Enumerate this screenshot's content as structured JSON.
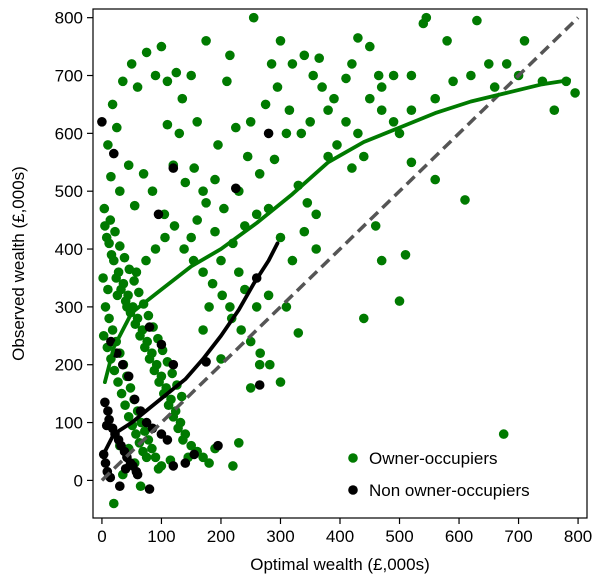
{
  "chart_data": {
    "type": "scatter",
    "xlabel": "Optimal wealth (£,000s)",
    "ylabel": "Observed wealth (£,000s)",
    "xlim": [
      -15,
      815
    ],
    "ylim": [
      -65,
      815
    ],
    "xticks": [
      "0",
      "100",
      "200",
      "300",
      "400",
      "500",
      "600",
      "700",
      "800"
    ],
    "yticks": [
      "0",
      "100",
      "200",
      "300",
      "400",
      "500",
      "600",
      "700",
      "800"
    ],
    "grid": false,
    "legend_position": "bottom-right",
    "reference_line": {
      "style": "dashed",
      "color": "#555555",
      "from": [
        0,
        0
      ],
      "to": [
        800,
        800
      ]
    },
    "series": [
      {
        "name": "Owner-occupiers",
        "color": "#007a00",
        "points": [
          [
            10,
            580
          ],
          [
            18,
            650
          ],
          [
            25,
            610
          ],
          [
            35,
            690
          ],
          [
            50,
            720
          ],
          [
            60,
            680
          ],
          [
            75,
            740
          ],
          [
            90,
            700
          ],
          [
            100,
            750
          ],
          [
            110,
            690
          ],
          [
            125,
            705
          ],
          [
            135,
            660
          ],
          [
            150,
            700
          ],
          [
            175,
            760
          ],
          [
            210,
            690
          ],
          [
            215,
            735
          ],
          [
            255,
            800
          ],
          [
            285,
            720
          ],
          [
            300,
            760
          ],
          [
            320,
            720
          ],
          [
            340,
            735
          ],
          [
            355,
            700
          ],
          [
            365,
            730
          ],
          [
            380,
            640
          ],
          [
            410,
            695
          ],
          [
            420,
            720
          ],
          [
            430,
            765
          ],
          [
            450,
            750
          ],
          [
            465,
            700
          ],
          [
            470,
            640
          ],
          [
            490,
            620
          ],
          [
            500,
            600
          ],
          [
            520,
            640
          ],
          [
            540,
            790
          ],
          [
            545,
            800
          ],
          [
            580,
            760
          ],
          [
            630,
            795
          ],
          [
            650,
            720
          ],
          [
            680,
            720
          ],
          [
            710,
            760
          ],
          [
            760,
            640
          ],
          [
            795,
            670
          ],
          [
            15,
            525
          ],
          [
            30,
            500
          ],
          [
            45,
            545
          ],
          [
            55,
            475
          ],
          [
            70,
            530
          ],
          [
            85,
            500
          ],
          [
            105,
            460
          ],
          [
            120,
            545
          ],
          [
            140,
            515
          ],
          [
            155,
            540
          ],
          [
            170,
            500
          ],
          [
            190,
            520
          ],
          [
            205,
            470
          ],
          [
            230,
            500
          ],
          [
            245,
            560
          ],
          [
            265,
            530
          ],
          [
            290,
            555
          ],
          [
            310,
            600
          ],
          [
            330,
            510
          ],
          [
            345,
            480
          ],
          [
            360,
            460
          ],
          [
            380,
            560
          ],
          [
            395,
            580
          ],
          [
            420,
            540
          ],
          [
            440,
            560
          ],
          [
            460,
            440
          ],
          [
            470,
            380
          ],
          [
            510,
            390
          ],
          [
            520,
            550
          ],
          [
            560,
            520
          ],
          [
            610,
            485
          ],
          [
            675,
            80
          ],
          [
            500,
            310
          ],
          [
            440,
            280
          ],
          [
            330,
            255
          ],
          [
            300,
            170
          ],
          [
            250,
            160
          ],
          [
            265,
            200
          ],
          [
            200,
            210
          ],
          [
            215,
            300
          ],
          [
            5,
            440
          ],
          [
            12,
            410
          ],
          [
            20,
            380
          ],
          [
            28,
            360
          ],
          [
            36,
            340
          ],
          [
            44,
            320
          ],
          [
            52,
            300
          ],
          [
            60,
            280
          ],
          [
            68,
            260
          ],
          [
            76,
            240
          ],
          [
            84,
            220
          ],
          [
            92,
            200
          ],
          [
            100,
            180
          ],
          [
            108,
            160
          ],
          [
            116,
            140
          ],
          [
            124,
            120
          ],
          [
            132,
            100
          ],
          [
            140,
            80
          ],
          [
            150,
            60
          ],
          [
            160,
            50
          ],
          [
            170,
            40
          ],
          [
            180,
            30
          ],
          [
            8,
            420
          ],
          [
            16,
            390
          ],
          [
            24,
            350
          ],
          [
            32,
            330
          ],
          [
            40,
            310
          ],
          [
            48,
            290
          ],
          [
            56,
            270
          ],
          [
            64,
            250
          ],
          [
            72,
            230
          ],
          [
            80,
            210
          ],
          [
            88,
            190
          ],
          [
            96,
            170
          ],
          [
            104,
            150
          ],
          [
            112,
            130
          ],
          [
            120,
            110
          ],
          [
            128,
            90
          ],
          [
            136,
            70
          ],
          [
            4,
            470
          ],
          [
            14,
            450
          ],
          [
            22,
            430
          ],
          [
            30,
            405
          ],
          [
            38,
            385
          ],
          [
            46,
            365
          ],
          [
            54,
            345
          ],
          [
            62,
            325
          ],
          [
            70,
            305
          ],
          [
            78,
            285
          ],
          [
            86,
            265
          ],
          [
            94,
            245
          ],
          [
            102,
            225
          ],
          [
            110,
            205
          ],
          [
            118,
            185
          ],
          [
            126,
            165
          ],
          [
            134,
            145
          ],
          [
            6,
            300
          ],
          [
            12,
            280
          ],
          [
            18,
            260
          ],
          [
            24,
            240
          ],
          [
            30,
            220
          ],
          [
            36,
            200
          ],
          [
            42,
            180
          ],
          [
            48,
            160
          ],
          [
            54,
            140
          ],
          [
            60,
            120
          ],
          [
            66,
            100
          ],
          [
            72,
            85
          ],
          [
            78,
            70
          ],
          [
            84,
            55
          ],
          [
            90,
            40
          ],
          [
            3,
            250
          ],
          [
            9,
            230
          ],
          [
            15,
            210
          ],
          [
            21,
            190
          ],
          [
            27,
            170
          ],
          [
            33,
            150
          ],
          [
            39,
            130
          ],
          [
            45,
            110
          ],
          [
            51,
            95
          ],
          [
            57,
            80
          ],
          [
            63,
            65
          ],
          [
            69,
            50
          ],
          [
            2,
            350
          ],
          [
            10,
            330
          ],
          [
            26,
            320
          ],
          [
            42,
            300
          ],
          [
            58,
            360
          ],
          [
            74,
            380
          ],
          [
            90,
            400
          ],
          [
            106,
            420
          ],
          [
            122,
            440
          ],
          [
            138,
            400
          ],
          [
            154,
            380
          ],
          [
            170,
            360
          ],
          [
            186,
            340
          ],
          [
            202,
            320
          ],
          [
            218,
            280
          ],
          [
            234,
            260
          ],
          [
            250,
            240
          ],
          [
            266,
            220
          ],
          [
            282,
            200
          ],
          [
            150,
            420
          ],
          [
            160,
            450
          ],
          [
            175,
            480
          ],
          [
            190,
            430
          ],
          [
            220,
            410
          ],
          [
            240,
            440
          ],
          [
            260,
            460
          ],
          [
            280,
            470
          ],
          [
            300,
            420
          ],
          [
            320,
            380
          ],
          [
            340,
            430
          ],
          [
            360,
            400
          ],
          [
            310,
            300
          ],
          [
            280,
            320
          ],
          [
            260,
            300
          ],
          [
            240,
            330
          ],
          [
            230,
            360
          ],
          [
            200,
            380
          ],
          [
            180,
            300
          ],
          [
            170,
            260
          ],
          [
            20,
            -40
          ],
          [
            35,
            10
          ],
          [
            55,
            30
          ],
          [
            65,
            -10
          ],
          [
            95,
            20
          ],
          [
            115,
            35
          ],
          [
            145,
            40
          ],
          [
            190,
            55
          ],
          [
            220,
            25
          ],
          [
            230,
            65
          ],
          [
            30,
            60
          ],
          [
            45,
            55
          ],
          [
            75,
            40
          ],
          [
            100,
            25
          ],
          [
            110,
            615
          ],
          [
            130,
            600
          ],
          [
            160,
            620
          ],
          [
            195,
            580
          ],
          [
            225,
            610
          ],
          [
            250,
            620
          ],
          [
            275,
            650
          ],
          [
            295,
            680
          ],
          [
            315,
            640
          ],
          [
            335,
            600
          ],
          [
            350,
            620
          ],
          [
            370,
            680
          ],
          [
            390,
            660
          ],
          [
            410,
            620
          ],
          [
            430,
            600
          ],
          [
            450,
            660
          ],
          [
            470,
            680
          ],
          [
            490,
            700
          ],
          [
            520,
            700
          ],
          [
            560,
            660
          ],
          [
            590,
            690
          ],
          [
            620,
            700
          ],
          [
            660,
            680
          ],
          [
            700,
            700
          ],
          [
            740,
            690
          ],
          [
            780,
            690
          ]
        ]
      },
      {
        "name": "Non owner-occupiers",
        "color": "#000000",
        "points": [
          [
            0,
            620
          ],
          [
            20,
            565
          ],
          [
            120,
            540
          ],
          [
            280,
            600
          ],
          [
            225,
            505
          ],
          [
            95,
            460
          ],
          [
            175,
            205
          ],
          [
            195,
            60
          ],
          [
            155,
            45
          ],
          [
            140,
            30
          ],
          [
            120,
            25
          ],
          [
            80,
            -15
          ],
          [
            60,
            10
          ],
          [
            40,
            20
          ],
          [
            30,
            -10
          ],
          [
            15,
            240
          ],
          [
            25,
            220
          ],
          [
            35,
            200
          ],
          [
            45,
            180
          ],
          [
            55,
            140
          ],
          [
            65,
            120
          ],
          [
            75,
            100
          ],
          [
            85,
            90
          ],
          [
            100,
            80
          ],
          [
            110,
            70
          ],
          [
            5,
            135
          ],
          [
            10,
            120
          ],
          [
            12,
            105
          ],
          [
            8,
            95
          ],
          [
            18,
            90
          ],
          [
            22,
            80
          ],
          [
            28,
            70
          ],
          [
            32,
            60
          ],
          [
            38,
            50
          ],
          [
            42,
            40
          ],
          [
            48,
            30
          ],
          [
            52,
            25
          ],
          [
            58,
            15
          ],
          [
            3,
            45
          ],
          [
            6,
            30
          ],
          [
            9,
            15
          ],
          [
            14,
            5
          ],
          [
            260,
            350
          ],
          [
            265,
            165
          ],
          [
            80,
            265
          ],
          [
            100,
            235
          ],
          [
            120,
            200
          ]
        ]
      }
    ],
    "trend_lines": [
      {
        "series": "Owner-occupiers",
        "color": "#007a00",
        "points": [
          [
            5,
            170
          ],
          [
            20,
            230
          ],
          [
            50,
            290
          ],
          [
            100,
            330
          ],
          [
            150,
            370
          ],
          [
            200,
            400
          ],
          [
            260,
            445
          ],
          [
            320,
            495
          ],
          [
            380,
            550
          ],
          [
            440,
            585
          ],
          [
            500,
            610
          ],
          [
            560,
            635
          ],
          [
            620,
            655
          ],
          [
            680,
            670
          ],
          [
            740,
            685
          ],
          [
            785,
            692
          ]
        ]
      },
      {
        "series": "Non owner-occupiers",
        "color": "#000000",
        "points": [
          [
            5,
            50
          ],
          [
            20,
            80
          ],
          [
            50,
            100
          ],
          [
            80,
            125
          ],
          [
            110,
            150
          ],
          [
            140,
            175
          ],
          [
            170,
            210
          ],
          [
            200,
            250
          ],
          [
            230,
            295
          ],
          [
            255,
            340
          ],
          [
            280,
            380
          ],
          [
            295,
            410
          ]
        ]
      }
    ]
  }
}
